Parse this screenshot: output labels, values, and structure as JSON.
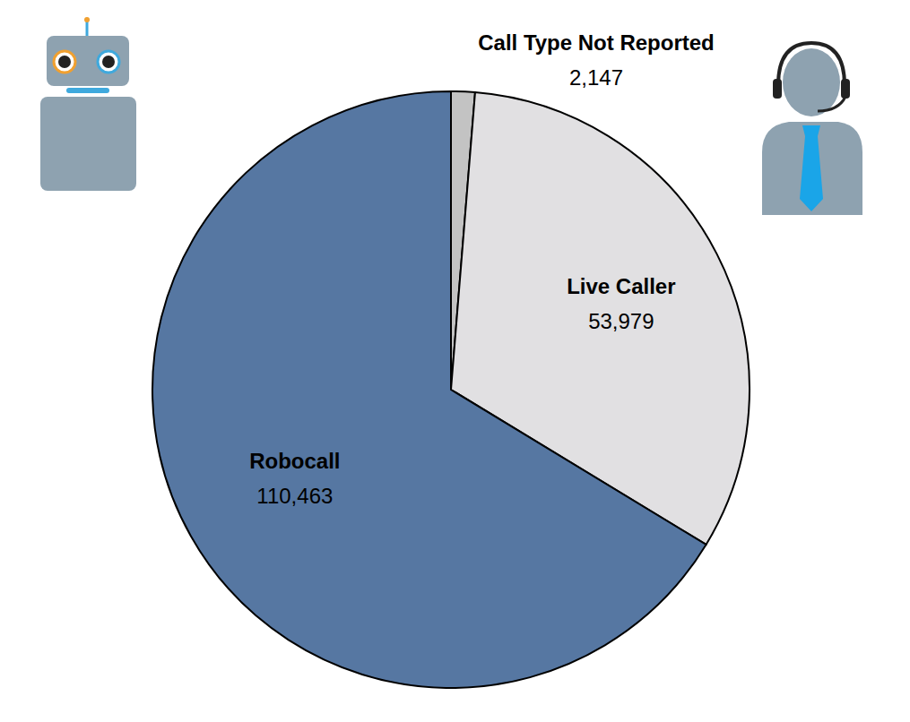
{
  "chart_data": {
    "type": "pie",
    "categories": [
      "Call Type Not Reported",
      "Live Caller",
      "Robocall"
    ],
    "values": [
      2147,
      53979,
      110463
    ],
    "value_labels": [
      "2,147",
      "53,979",
      "110,463"
    ],
    "colors": [
      "#c3c3c3",
      "#e1e0e2",
      "#5677a2"
    ],
    "data_labels": true
  }
}
